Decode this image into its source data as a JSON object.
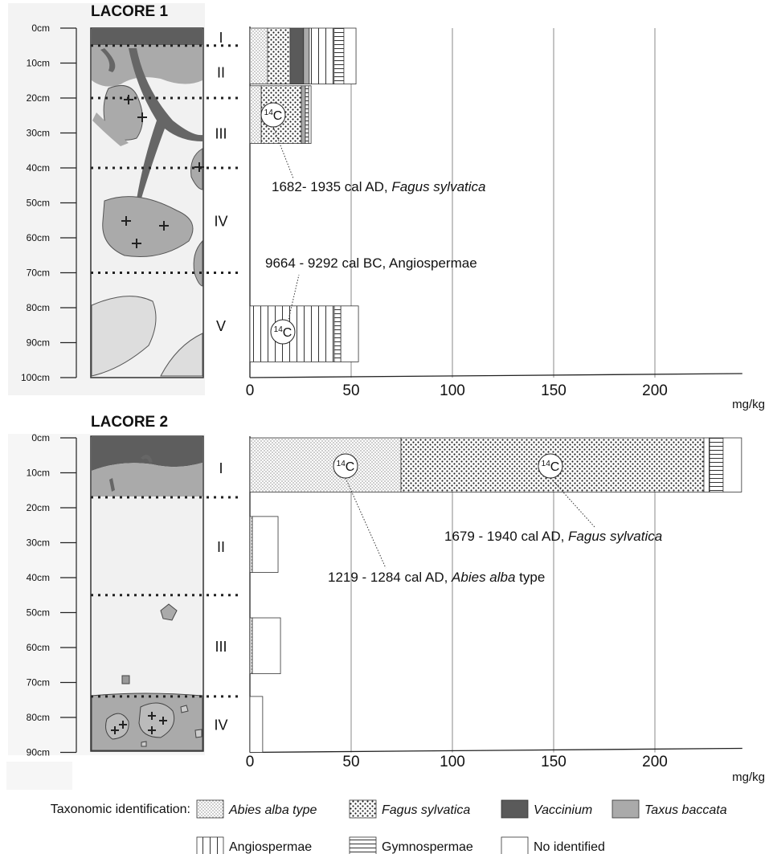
{
  "radiocarbon": {
    "mass": "14",
    "element": "C"
  },
  "legend": {
    "title": "Taxonomic identification:",
    "series": [
      {
        "name": "Abies alba type",
        "font_style": "italic",
        "pattern": "fine-dots",
        "color": "#555555"
      },
      {
        "name": "Fagus sylvatica",
        "font_style": "italic",
        "pattern": "dots",
        "color": "#222222"
      },
      {
        "name": "Vaccinium",
        "font_style": "italic",
        "pattern": "solid",
        "color": "#5a5a5a"
      },
      {
        "name": "Taxus baccata",
        "font_style": "italic",
        "pattern": "solid",
        "color": "#aaaaaa"
      },
      {
        "name": "Angiospermae",
        "font_style": "normal",
        "pattern": "vertical-lines",
        "color": "#333333"
      },
      {
        "name": "Gymnospermae",
        "font_style": "normal",
        "pattern": "horizontal-lines",
        "color": "#333333"
      },
      {
        "name": "No identified",
        "font_style": "normal",
        "pattern": "solid",
        "color": "#ffffff"
      }
    ]
  },
  "chart_data": [
    {
      "type": "bar",
      "orientation": "horizontal",
      "stacked": true,
      "grid": true,
      "title": "LACORE 1",
      "xlabel": "mg/kg",
      "xlim": [
        0,
        240
      ],
      "xticks": [
        0,
        50,
        100,
        150,
        200
      ],
      "ylim": [
        0,
        100
      ],
      "yticks": [
        {
          "value": 0,
          "label": "0cm"
        },
        {
          "value": 10,
          "label": "10cm"
        },
        {
          "value": 20,
          "label": "20cm"
        },
        {
          "value": 30,
          "label": "30cm"
        },
        {
          "value": 40,
          "label": "40cm"
        },
        {
          "value": 50,
          "label": "50cm"
        },
        {
          "value": 60,
          "label": "60cm"
        },
        {
          "value": 70,
          "label": "70cm"
        },
        {
          "value": 80,
          "label": "80cm"
        },
        {
          "value": 90,
          "label": "90cm"
        },
        {
          "value": 100,
          "label": "100cm"
        }
      ],
      "layers": [
        {
          "name": "I",
          "top": 0,
          "bottom": 5
        },
        {
          "name": "II",
          "top": 5,
          "bottom": 20
        },
        {
          "name": "III",
          "top": 20,
          "bottom": 40
        },
        {
          "name": "IV",
          "top": 40,
          "bottom": 70
        },
        {
          "name": "V",
          "top": 70,
          "bottom": 100
        }
      ],
      "bar_depths": [
        [
          0,
          16
        ],
        [
          16.5,
          33
        ],
        [
          79.5,
          95.5
        ]
      ],
      "series": [
        {
          "values": [
            8.7,
            5.6,
            0
          ]
        },
        {
          "values": [
            11.1,
            19.8,
            0
          ]
        },
        {
          "values": [
            6.7,
            0,
            0
          ]
        },
        {
          "values": [
            2.8,
            2.0,
            0
          ]
        },
        {
          "values": [
            12.3,
            0,
            41.7
          ]
        },
        {
          "values": [
            4.8,
            1.6,
            3.2
          ]
        },
        {
          "values": [
            6.0,
            1.2,
            8.7
          ]
        }
      ],
      "annotations": [
        {
          "parts": [
            "1682- 1935 cal AD, ",
            "Fagus sylvatica"
          ]
        },
        {
          "parts": [
            "9664 - 9292 cal BC, Angiospermae"
          ]
        }
      ]
    },
    {
      "type": "bar",
      "orientation": "horizontal",
      "stacked": true,
      "grid": true,
      "title": "LACORE 2",
      "xlabel": "mg/kg",
      "xlim": [
        0,
        240
      ],
      "xticks": [
        0,
        50,
        100,
        150,
        200
      ],
      "ylim": [
        0,
        90
      ],
      "yticks": [
        {
          "value": 0,
          "label": "0cm"
        },
        {
          "value": 10,
          "label": "10cm"
        },
        {
          "value": 20,
          "label": "20cm"
        },
        {
          "value": 30,
          "label": "30cm"
        },
        {
          "value": 40,
          "label": "40cm"
        },
        {
          "value": 50,
          "label": "50cm"
        },
        {
          "value": 60,
          "label": "60cm"
        },
        {
          "value": 70,
          "label": "70cm"
        },
        {
          "value": 80,
          "label": "80cm"
        },
        {
          "value": 90,
          "label": "90cm"
        }
      ],
      "layers": [
        {
          "name": "I",
          "top": 0,
          "bottom": 17
        },
        {
          "name": "II",
          "top": 17,
          "bottom": 45
        },
        {
          "name": "III",
          "top": 45,
          "bottom": 74
        },
        {
          "name": "IV",
          "top": 74,
          "bottom": 90
        }
      ],
      "bar_depths": [
        [
          0,
          15.5
        ],
        [
          22.5,
          38.5
        ],
        [
          51.5,
          67.5
        ],
        [
          74,
          90
        ]
      ],
      "series": [
        {
          "values": [
            74.6,
            1.2,
            1.2,
            0
          ]
        },
        {
          "values": [
            149.6,
            0,
            0,
            0
          ]
        },
        {
          "values": [
            0,
            0,
            0,
            0
          ]
        },
        {
          "values": [
            0,
            0,
            0,
            0
          ]
        },
        {
          "values": [
            2.8,
            0,
            0,
            0
          ]
        },
        {
          "values": [
            6.7,
            0,
            0,
            0
          ]
        },
        {
          "values": [
            9.1,
            12.7,
            13.9,
            6.3
          ]
        }
      ],
      "annotations": [
        {
          "parts": [
            "1679 - 1940 cal AD, ",
            "Fagus sylvatica"
          ]
        },
        {
          "parts": [
            "1219 - 1284 cal AD, ",
            "Abies alba",
            " type"
          ]
        }
      ]
    }
  ]
}
